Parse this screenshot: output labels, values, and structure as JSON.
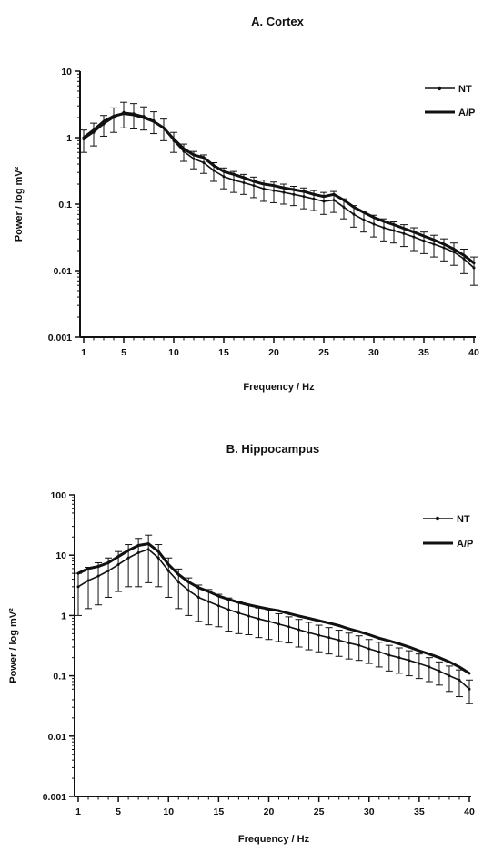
{
  "chart_data": [
    {
      "type": "line",
      "title": "A. Cortex",
      "xlabel": "Frequency / Hz",
      "ylabel": "Power / log mV²",
      "yscale": "log",
      "xlim": [
        1,
        40
      ],
      "ylim": [
        0.001,
        10
      ],
      "x_ticks": [
        1,
        5,
        10,
        15,
        20,
        25,
        30,
        35,
        40
      ],
      "y_ticks": [
        "0.001",
        "0.01",
        "0.1",
        "1",
        "10"
      ],
      "grid": false,
      "legend_placement": "top-right",
      "x": [
        1,
        2,
        3,
        4,
        5,
        6,
        7,
        8,
        9,
        10,
        11,
        12,
        13,
        14,
        15,
        16,
        17,
        18,
        19,
        20,
        21,
        22,
        23,
        24,
        25,
        26,
        27,
        28,
        29,
        30,
        31,
        32,
        33,
        34,
        35,
        36,
        37,
        38,
        39,
        40
      ],
      "series": [
        {
          "name": "NT",
          "marker": "dot",
          "values": [
            0.95,
            1.2,
            1.6,
            2.0,
            2.4,
            2.3,
            2.1,
            1.8,
            1.4,
            0.9,
            0.62,
            0.48,
            0.42,
            0.32,
            0.26,
            0.23,
            0.21,
            0.19,
            0.17,
            0.16,
            0.15,
            0.14,
            0.13,
            0.12,
            0.11,
            0.115,
            0.09,
            0.07,
            0.058,
            0.05,
            0.044,
            0.04,
            0.036,
            0.032,
            0.028,
            0.025,
            0.022,
            0.019,
            0.015,
            0.011
          ],
          "error": [
            0.35,
            0.45,
            0.55,
            0.8,
            1.0,
            0.95,
            0.8,
            0.65,
            0.5,
            0.3,
            0.18,
            0.14,
            0.13,
            0.1,
            0.09,
            0.08,
            0.07,
            0.065,
            0.06,
            0.055,
            0.05,
            0.045,
            0.045,
            0.04,
            0.04,
            0.04,
            0.03,
            0.025,
            0.02,
            0.018,
            0.016,
            0.014,
            0.013,
            0.012,
            0.01,
            0.009,
            0.008,
            0.007,
            0.006,
            0.005
          ]
        },
        {
          "name": "A/P",
          "marker": "none",
          "values": [
            1.0,
            1.3,
            1.75,
            2.1,
            2.3,
            2.2,
            2.0,
            1.75,
            1.4,
            0.95,
            0.68,
            0.55,
            0.5,
            0.38,
            0.31,
            0.28,
            0.25,
            0.22,
            0.2,
            0.19,
            0.175,
            0.165,
            0.155,
            0.14,
            0.13,
            0.14,
            0.115,
            0.09,
            0.075,
            0.063,
            0.055,
            0.049,
            0.043,
            0.038,
            0.033,
            0.029,
            0.025,
            0.021,
            0.017,
            0.013
          ]
        }
      ]
    },
    {
      "type": "line",
      "title": "B. Hippocampus",
      "xlabel": "Frequency / Hz",
      "ylabel": "Power / log mV²",
      "yscale": "log",
      "xlim": [
        1,
        40
      ],
      "ylim": [
        0.001,
        100
      ],
      "x_ticks": [
        1,
        5,
        10,
        15,
        20,
        25,
        30,
        35,
        40
      ],
      "y_ticks": [
        "0.001",
        "0.01",
        "0.1",
        "1",
        "10",
        "100"
      ],
      "grid": false,
      "legend_placement": "top-right",
      "x": [
        1,
        2,
        3,
        4,
        5,
        6,
        7,
        8,
        9,
        10,
        11,
        12,
        13,
        14,
        15,
        16,
        17,
        18,
        19,
        20,
        21,
        22,
        23,
        24,
        25,
        26,
        27,
        28,
        29,
        30,
        31,
        32,
        33,
        34,
        35,
        36,
        37,
        38,
        39,
        40
      ],
      "series": [
        {
          "name": "NT",
          "marker": "dot",
          "values": [
            3.0,
            3.8,
            4.5,
            5.5,
            7.0,
            9.0,
            11.0,
            12.5,
            9.0,
            5.5,
            3.6,
            2.6,
            2.0,
            1.7,
            1.45,
            1.25,
            1.1,
            0.98,
            0.88,
            0.8,
            0.72,
            0.65,
            0.58,
            0.52,
            0.47,
            0.43,
            0.39,
            0.35,
            0.32,
            0.28,
            0.25,
            0.22,
            0.2,
            0.18,
            0.16,
            0.14,
            0.12,
            0.1,
            0.085,
            0.06
          ],
          "error": [
            2.0,
            2.5,
            3.0,
            3.5,
            4.5,
            6.0,
            8.0,
            9.0,
            6.0,
            3.5,
            2.3,
            1.6,
            1.2,
            1.0,
            0.8,
            0.7,
            0.6,
            0.5,
            0.45,
            0.4,
            0.35,
            0.3,
            0.28,
            0.25,
            0.22,
            0.2,
            0.18,
            0.16,
            0.14,
            0.12,
            0.11,
            0.1,
            0.09,
            0.08,
            0.07,
            0.06,
            0.05,
            0.045,
            0.04,
            0.025
          ]
        },
        {
          "name": "A/P",
          "marker": "none",
          "values": [
            5.0,
            6.0,
            6.5,
            7.5,
            9.5,
            12.0,
            14.5,
            15.5,
            11.5,
            7.0,
            4.8,
            3.6,
            2.9,
            2.5,
            2.1,
            1.85,
            1.65,
            1.5,
            1.38,
            1.28,
            1.2,
            1.08,
            0.98,
            0.9,
            0.82,
            0.75,
            0.68,
            0.6,
            0.54,
            0.48,
            0.42,
            0.38,
            0.34,
            0.3,
            0.26,
            0.23,
            0.2,
            0.17,
            0.14,
            0.11
          ]
        }
      ]
    }
  ]
}
